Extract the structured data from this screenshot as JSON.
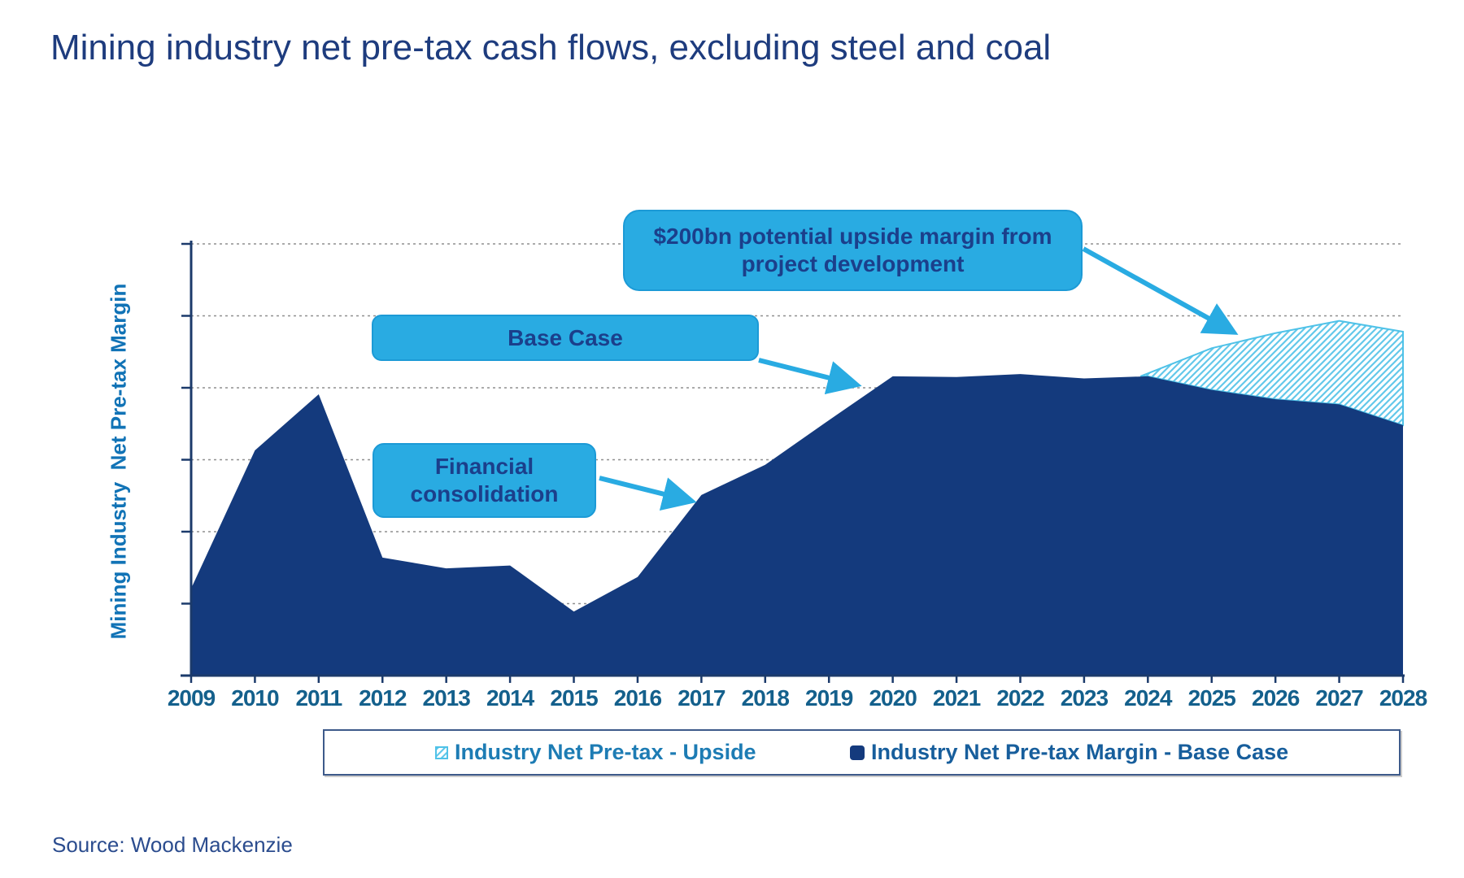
{
  "title": "Mining industry net pre-tax cash flows, excluding steel and coal",
  "y_axis_label": "Mining Industry  Net Pre-tax Margin",
  "source": "Source: Wood Mackenzie",
  "callouts": {
    "upside": "$200bn potential upside margin from project development",
    "base_case": "Base Case",
    "financial": "Financial consolidation"
  },
  "legend": {
    "upside_label": "Industry Net Pre-tax - Upside",
    "base_label": "Industry Net Pre-tax Margin - Base Case"
  },
  "colors": {
    "title_text": "#1E3C7E",
    "base_area": "#143A7D",
    "callout_fill": "#29ABE2",
    "callout_text": "#1B3F8B",
    "arrow": "#29ABE2",
    "hatch_line": "#63C8EA",
    "hatch_border": "#4FC2E8",
    "gridline": "#8F8F8F",
    "axis": "#1B3A6B",
    "year_label_text": "#14608C",
    "y_axis_label_text": "#1173B6",
    "legend_upside_text": "#1D7CB4",
    "legend_base_text": "#175E9C",
    "source_text": "#2B4C8E"
  },
  "chart_data": {
    "type": "area",
    "title": "Mining industry net pre-tax cash flows, excluding steel and coal",
    "xlabel": "Year",
    "ylabel": "Mining Industry Net Pre-tax Margin",
    "y_axis_note": "axis has no numeric tick labels; values expressed in gridline units (1 unit = one dashed gridline spacing, axis baseline = 0)",
    "ylim": [
      0,
      6
    ],
    "grid": "horizontal dashed, 6 lines",
    "legend_position": "bottom",
    "categories": [
      2009,
      2010,
      2011,
      2012,
      2013,
      2014,
      2015,
      2016,
      2017,
      2018,
      2019,
      2020,
      2021,
      2022,
      2023,
      2024,
      2025,
      2026,
      2027,
      2028
    ],
    "series": [
      {
        "name": "Industry Net Pre-tax Margin - Base Case",
        "values": [
          1.21,
          3.13,
          3.91,
          1.64,
          1.49,
          1.53,
          0.89,
          1.37,
          2.51,
          2.93,
          3.55,
          4.16,
          4.15,
          4.19,
          4.13,
          4.16,
          3.97,
          3.84,
          3.77,
          3.48
        ]
      },
      {
        "name": "Industry Net Pre-tax - Upside (total including base case)",
        "values": [
          null,
          null,
          null,
          null,
          null,
          null,
          null,
          null,
          null,
          null,
          null,
          null,
          null,
          null,
          null,
          4.2,
          4.55,
          4.76,
          4.93,
          4.78
        ]
      }
    ]
  }
}
